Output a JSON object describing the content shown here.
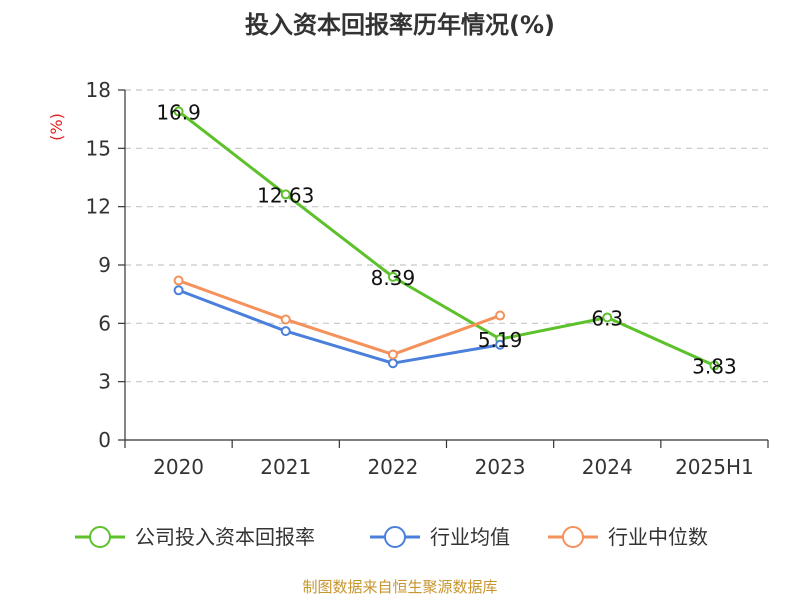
{
  "chart_data": {
    "type": "line",
    "title": "投入资本回报率历年情况(%)",
    "ylabel": "(%)",
    "categories": [
      "2020",
      "2021",
      "2022",
      "2023",
      "2024",
      "2025H1"
    ],
    "y_ticks": [
      "0",
      "3",
      "6",
      "9",
      "12",
      "15",
      "18"
    ],
    "ylim": [
      0,
      18
    ],
    "grid": true,
    "legend_position": "bottom",
    "series": [
      {
        "name": "公司投入资本回报率",
        "color": "#5cc12a",
        "values": [
          16.9,
          12.63,
          8.39,
          5.19,
          6.3,
          3.83
        ],
        "labels": [
          "16.9",
          "12.63",
          "8.39",
          "5.19",
          "6.3",
          "3.83"
        ]
      },
      {
        "name": "行业均值",
        "color": "#4a7fdb",
        "values": [
          7.7,
          5.6,
          3.95,
          4.9,
          null,
          null
        ]
      },
      {
        "name": "行业中位数",
        "color": "#f5915a",
        "values": [
          8.2,
          6.2,
          4.4,
          6.4,
          null,
          null
        ]
      }
    ],
    "source": "制图数据来自恒生聚源数据库"
  }
}
